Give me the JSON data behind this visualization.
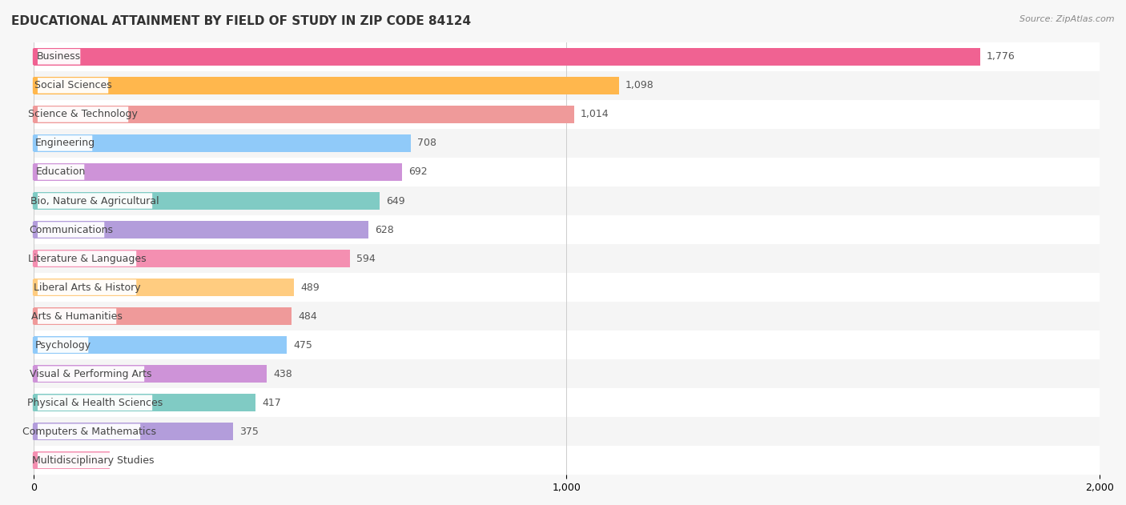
{
  "title": "EDUCATIONAL ATTAINMENT BY FIELD OF STUDY IN ZIP CODE 84124",
  "source": "Source: ZipAtlas.com",
  "categories": [
    "Business",
    "Social Sciences",
    "Science & Technology",
    "Engineering",
    "Education",
    "Bio, Nature & Agricultural",
    "Communications",
    "Literature & Languages",
    "Liberal Arts & History",
    "Arts & Humanities",
    "Psychology",
    "Visual & Performing Arts",
    "Physical & Health Sciences",
    "Computers & Mathematics",
    "Multidisciplinary Studies"
  ],
  "values": [
    1776,
    1098,
    1014,
    708,
    692,
    649,
    628,
    594,
    489,
    484,
    475,
    438,
    417,
    375,
    143
  ],
  "bar_colors": [
    "#f06292",
    "#ffb74d",
    "#ef9a9a",
    "#90caf9",
    "#ce93d8",
    "#80cbc4",
    "#b39ddb",
    "#f48fb1",
    "#ffcc80",
    "#ef9a9a",
    "#90caf9",
    "#ce93d8",
    "#80cbc4",
    "#b39ddb",
    "#f48fb1"
  ],
  "xlim": [
    0,
    2000
  ],
  "xticks": [
    0,
    1000,
    2000
  ],
  "background_color": "#f7f7f7",
  "row_bg_even": "#ffffff",
  "row_bg_odd": "#f0f0f0",
  "title_fontsize": 11,
  "label_fontsize": 9,
  "value_fontsize": 9
}
